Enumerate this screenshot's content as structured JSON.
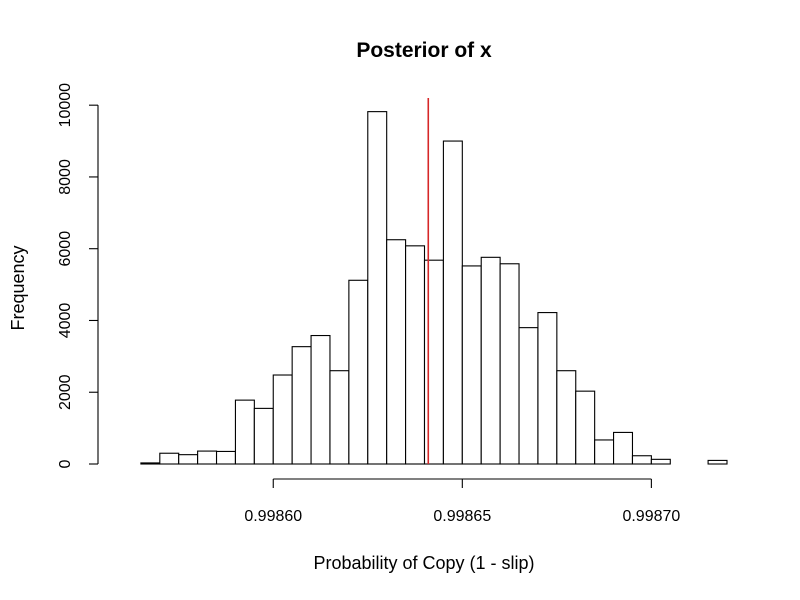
{
  "chart_data": {
    "type": "bar",
    "title": "Posterior of x",
    "xlabel": "Probability of Copy (1 - slip)",
    "ylabel": "Frequency",
    "bin_start": 0.99856,
    "bin_width": 5e-06,
    "values": [
      0,
      30,
      300,
      260,
      360,
      350,
      1780,
      1550,
      2480,
      3270,
      3580,
      2600,
      5120,
      9820,
      6250,
      6080,
      5680,
      9000,
      5520,
      5760,
      5580,
      3800,
      4220,
      2600,
      2030,
      670,
      880,
      230,
      130,
      0,
      0,
      100
    ],
    "marker_x": 0.998641,
    "marker_color": "#d62728",
    "xlim": [
      0.99856,
      0.99872
    ],
    "ylim": [
      0,
      10200
    ],
    "xticks": [
      {
        "value": 0.9986,
        "label": "0.99860"
      },
      {
        "value": 0.99865,
        "label": "0.99865"
      },
      {
        "value": 0.9987,
        "label": "0.99870"
      }
    ],
    "yticks": [
      {
        "value": 0,
        "label": "0"
      },
      {
        "value": 2000,
        "label": "2000"
      },
      {
        "value": 4000,
        "label": "4000"
      },
      {
        "value": 6000,
        "label": "6000"
      },
      {
        "value": 8000,
        "label": "8000"
      },
      {
        "value": 10000,
        "label": "10000"
      }
    ],
    "grid": false,
    "legend": "none"
  }
}
